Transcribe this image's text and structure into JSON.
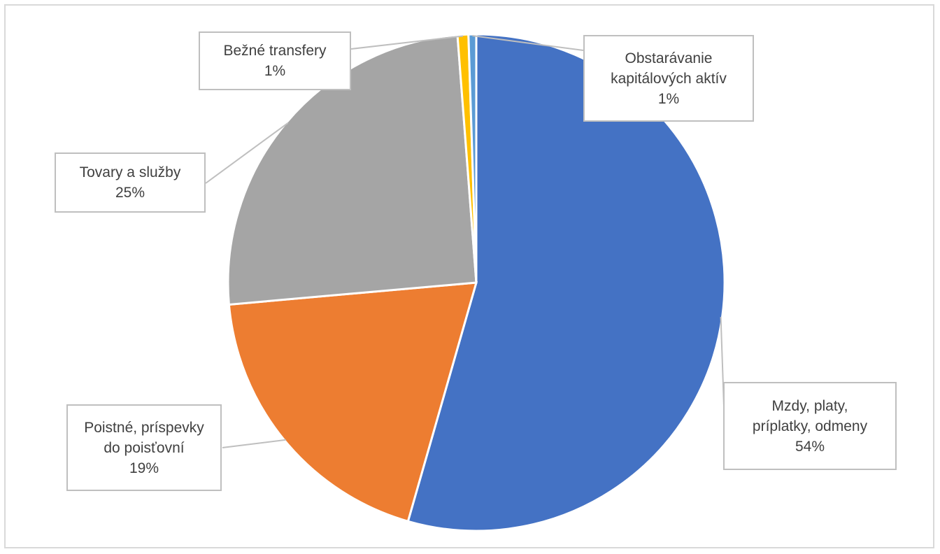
{
  "chart_data": {
    "type": "pie",
    "title": "",
    "slices": [
      {
        "label_lines": [
          "Mzdy, platy,",
          "príplatky, odmeny"
        ],
        "value_label": "54%",
        "value": 54,
        "color": "#4472C4"
      },
      {
        "label_lines": [
          "Poistné, príspevky",
          "do poisťovní"
        ],
        "value_label": "19%",
        "value": 19,
        "color": "#ED7D31"
      },
      {
        "label_lines": [
          "Tovary a služby"
        ],
        "value_label": "25%",
        "value": 25,
        "color": "#A5A5A5"
      },
      {
        "label_lines": [
          "Bežné transfery"
        ],
        "value_label": "1%",
        "value": 0.7,
        "color": "#FFC000"
      },
      {
        "label_lines": [
          "Obstarávanie",
          "kapitálových aktív"
        ],
        "value_label": "1%",
        "value": 0.5,
        "color": "#5B9BD5"
      }
    ],
    "legend": "none",
    "data_labels": "callouts with leader lines"
  }
}
